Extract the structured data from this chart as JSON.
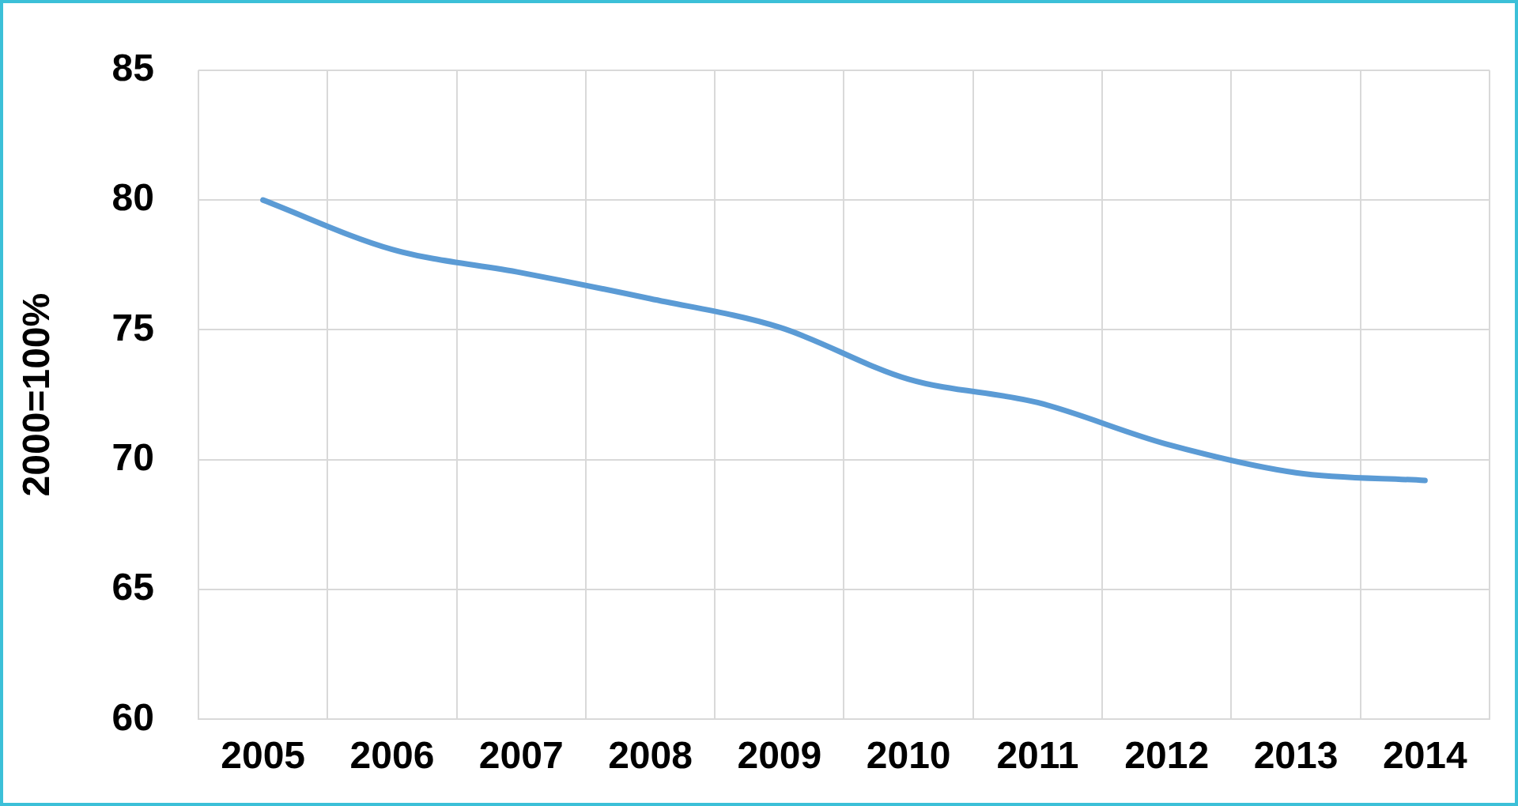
{
  "chart_data": {
    "type": "line",
    "ylabel": "2000=100%",
    "categories": [
      "2005",
      "2006",
      "2007",
      "2008",
      "2009",
      "2010",
      "2011",
      "2012",
      "2013",
      "2014"
    ],
    "series": [
      {
        "color": "#5b9bd5",
        "values": [
          80,
          78.1,
          77.2,
          76.2,
          75.1,
          73.1,
          72.2,
          70.6,
          69.5,
          69.2
        ]
      }
    ],
    "ylim": [
      60,
      85
    ],
    "yticks": [
      60,
      65,
      70,
      75,
      80,
      85
    ],
    "grid": true,
    "legend": false,
    "marker": "none",
    "line_style": "solid"
  }
}
